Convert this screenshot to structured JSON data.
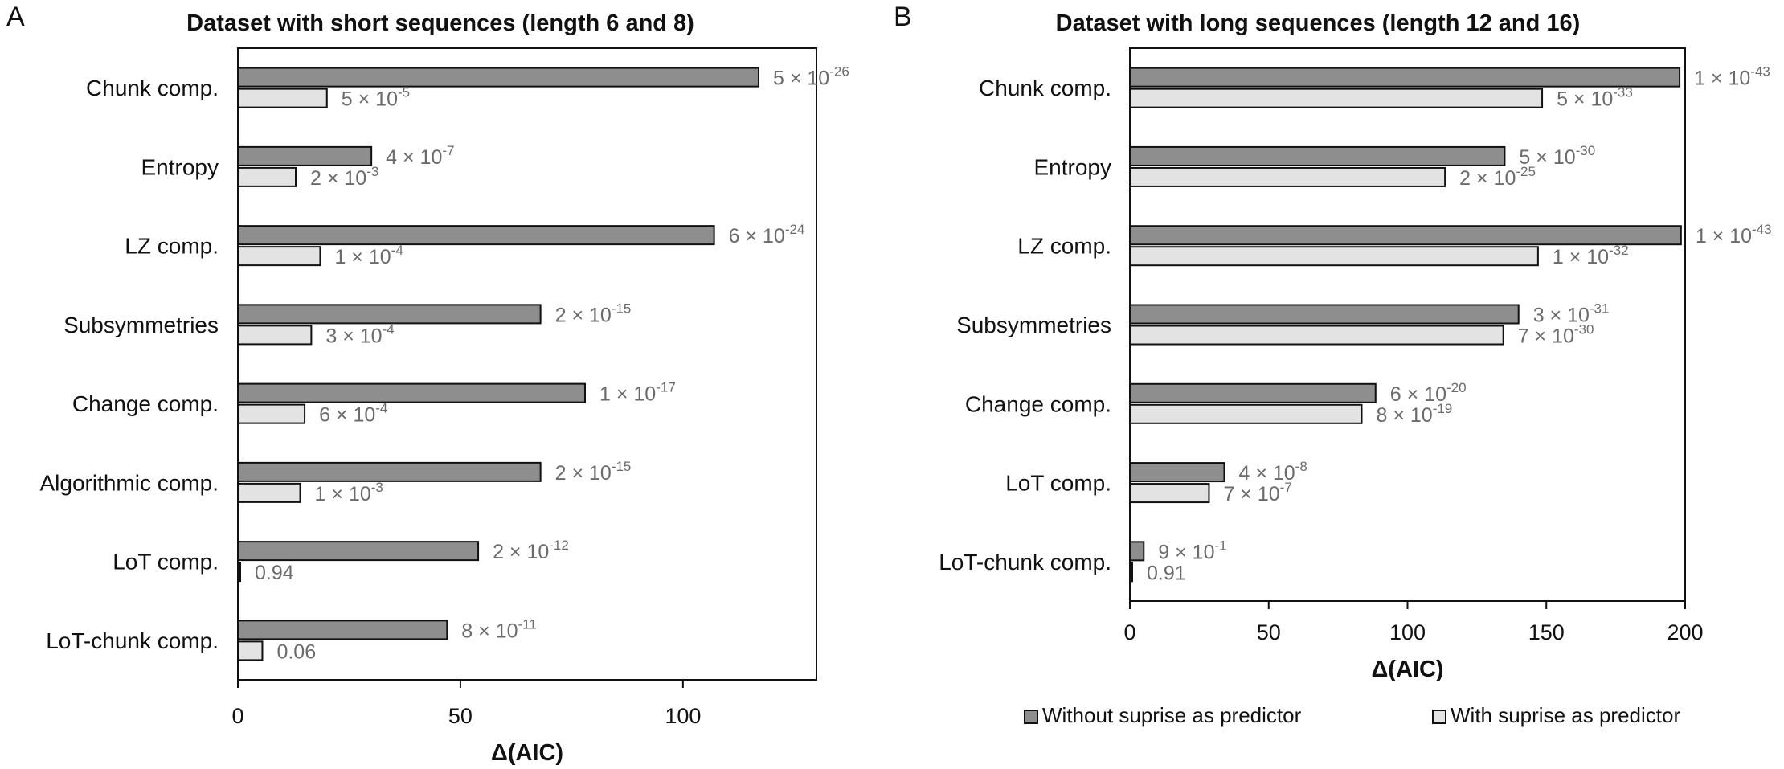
{
  "legend": [
    {
      "label": "Without suprise as predictor",
      "color": "#8e8e8e"
    },
    {
      "label": "With suprise as predictor",
      "color": "#e3e3e3"
    }
  ],
  "chart_data": [
    {
      "type": "bar",
      "panel": "A",
      "title": "Dataset with short sequences (length 6 and 8)",
      "xlabel": "Δ(AIC)",
      "xlim": [
        0,
        130
      ],
      "xticks": [
        0,
        50,
        100
      ],
      "categories": [
        "Chunk comp.",
        "Entropy",
        "LZ comp.",
        "Subsymmetries",
        "Change comp.",
        "Algorithmic comp.",
        "LoT comp.",
        "LoT-chunk comp."
      ],
      "series": [
        {
          "name": "Without suprise as predictor",
          "values": [
            117,
            30,
            107,
            68,
            78,
            68,
            54,
            47
          ],
          "labels": [
            [
              "5 × 10",
              "-26"
            ],
            [
              "4 × 10",
              "-7"
            ],
            [
              "6 × 10",
              "-24"
            ],
            [
              "2 × 10",
              "-15"
            ],
            [
              "1 × 10",
              "-17"
            ],
            [
              "2 × 10",
              "-15"
            ],
            [
              "2 × 10",
              "-12"
            ],
            [
              "8 × 10",
              "-11"
            ]
          ]
        },
        {
          "name": "With suprise as predictor",
          "values": [
            20,
            13,
            18.5,
            16.5,
            15,
            14,
            0.3,
            5.5
          ],
          "labels": [
            [
              "5 × 10",
              "-5"
            ],
            [
              "2 × 10",
              "-3"
            ],
            [
              "1 × 10",
              "-4"
            ],
            [
              "3 × 10",
              "-4"
            ],
            [
              "6 × 10",
              "-4"
            ],
            [
              "1 × 10",
              "-3"
            ],
            [
              "0.94",
              ""
            ],
            [
              "0.06",
              ""
            ]
          ]
        }
      ]
    },
    {
      "type": "bar",
      "panel": "B",
      "title": "Dataset with long sequences (length 12 and 16)",
      "xlabel": "Δ(AIC)",
      "xlim": [
        0,
        200
      ],
      "xticks": [
        0,
        50,
        100,
        150,
        200
      ],
      "categories": [
        "Chunk comp.",
        "Entropy",
        "LZ comp.",
        "Subsymmetries",
        "Change comp.",
        "LoT comp.",
        "LoT-chunk comp."
      ],
      "series": [
        {
          "name": "Without suprise as predictor",
          "values": [
            198,
            135,
            198.5,
            140,
            88.5,
            34,
            5
          ],
          "labels": [
            [
              "1 × 10",
              "-43"
            ],
            [
              "5 × 10",
              "-30"
            ],
            [
              "1 × 10",
              "-43"
            ],
            [
              "3 × 10",
              "-31"
            ],
            [
              "6 × 10",
              "-20"
            ],
            [
              "4 × 10",
              "-8"
            ],
            [
              "9 × 10",
              "-1"
            ]
          ]
        },
        {
          "name": "With suprise as predictor",
          "values": [
            148.5,
            113.5,
            147,
            134.5,
            83.5,
            28.5,
            0.4
          ],
          "labels": [
            [
              "5 × 10",
              "-33"
            ],
            [
              "2 × 10",
              "-25"
            ],
            [
              "1 × 10",
              "-32"
            ],
            [
              "7 × 10",
              "-30"
            ],
            [
              "8 × 10",
              "-19"
            ],
            [
              "7 × 10",
              "-7"
            ],
            [
              "0.91",
              ""
            ]
          ]
        }
      ]
    }
  ]
}
